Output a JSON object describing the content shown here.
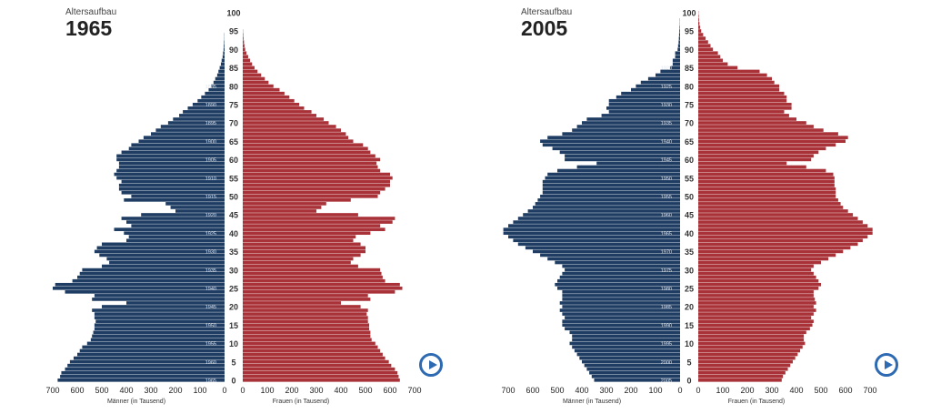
{
  "header": {
    "kicker": "Altersaufbau"
  },
  "axis": {
    "male_label": "Männer (in Tausend)",
    "female_label": "Frauen (in Tausend)",
    "x_ticks": [
      0,
      100,
      200,
      300,
      400,
      500,
      600,
      700
    ],
    "age_ticks": [
      0,
      5,
      10,
      15,
      20,
      25,
      30,
      35,
      40,
      45,
      50,
      55,
      60,
      65,
      70,
      75,
      80,
      85,
      90,
      95,
      100
    ]
  },
  "colors": {
    "male": "#1f3d63",
    "female": "#a83238",
    "play": "#2d6ab1"
  },
  "icons": {
    "play": "play-circle-icon"
  },
  "chart_data": [
    {
      "type": "bar",
      "title": "1965",
      "subtitle": "Altersaufbau",
      "xlabel_left": "Männer (in Tausend)",
      "xlabel_right": "Frauen (in Tausend)",
      "xlim": [
        0,
        700
      ],
      "age_range": [
        0,
        100
      ],
      "birth_year_labels": [
        {
          "age": 0,
          "label": "1965"
        },
        {
          "age": 5,
          "label": "1960"
        },
        {
          "age": 10,
          "label": "1955"
        },
        {
          "age": 15,
          "label": "1950"
        },
        {
          "age": 20,
          "label": "1945"
        },
        {
          "age": 25,
          "label": "1940"
        },
        {
          "age": 30,
          "label": "1935"
        },
        {
          "age": 35,
          "label": "1930"
        },
        {
          "age": 40,
          "label": "1925"
        },
        {
          "age": 45,
          "label": "1920"
        },
        {
          "age": 50,
          "label": "1915"
        },
        {
          "age": 55,
          "label": "1910"
        },
        {
          "age": 60,
          "label": "1905"
        },
        {
          "age": 65,
          "label": "1900"
        },
        {
          "age": 70,
          "label": "1895"
        },
        {
          "age": 75,
          "label": "1890"
        },
        {
          "age": 80,
          "label": "1885"
        }
      ],
      "series": [
        {
          "name": "Männer",
          "values": [
            680,
            670,
            665,
            650,
            640,
            630,
            615,
            600,
            590,
            580,
            560,
            545,
            540,
            535,
            530,
            530,
            525,
            530,
            530,
            540,
            500,
            400,
            540,
            530,
            650,
            700,
            690,
            620,
            600,
            590,
            580,
            500,
            470,
            480,
            510,
            530,
            520,
            500,
            400,
            390,
            410,
            450,
            380,
            400,
            420,
            340,
            200,
            220,
            240,
            410,
            380,
            420,
            430,
            430,
            420,
            440,
            450,
            440,
            430,
            430,
            440,
            440,
            420,
            390,
            380,
            350,
            330,
            300,
            280,
            260,
            230,
            210,
            185,
            170,
            150,
            130,
            110,
            95,
            80,
            65,
            55,
            45,
            38,
            30,
            25,
            20,
            15,
            12,
            8,
            6,
            4,
            3,
            2,
            1,
            1,
            0,
            0,
            0,
            0,
            0,
            0
          ]
        },
        {
          "name": "Frauen",
          "values": [
            640,
            635,
            630,
            620,
            605,
            595,
            580,
            570,
            560,
            550,
            540,
            525,
            520,
            520,
            515,
            515,
            510,
            510,
            505,
            510,
            480,
            400,
            520,
            510,
            620,
            650,
            640,
            580,
            570,
            565,
            560,
            470,
            440,
            450,
            480,
            500,
            500,
            480,
            450,
            460,
            520,
            580,
            560,
            610,
            620,
            470,
            300,
            320,
            340,
            440,
            550,
            560,
            580,
            600,
            600,
            610,
            600,
            560,
            550,
            545,
            560,
            540,
            520,
            510,
            490,
            450,
            430,
            420,
            400,
            380,
            350,
            330,
            300,
            280,
            250,
            230,
            210,
            190,
            170,
            150,
            125,
            105,
            90,
            75,
            60,
            48,
            38,
            30,
            22,
            15,
            10,
            7,
            5,
            3,
            2,
            1,
            0,
            0,
            0,
            0,
            0
          ]
        }
      ]
    },
    {
      "type": "bar",
      "title": "2005",
      "subtitle": "Altersaufbau",
      "xlabel_left": "Männer (in Tausend)",
      "xlabel_right": "Frauen (in Tausend)",
      "xlim": [
        0,
        700
      ],
      "age_range": [
        0,
        100
      ],
      "birth_year_labels": [
        {
          "age": 0,
          "label": "2005"
        },
        {
          "age": 5,
          "label": "2000"
        },
        {
          "age": 10,
          "label": "1995"
        },
        {
          "age": 15,
          "label": "1990"
        },
        {
          "age": 20,
          "label": "1985"
        },
        {
          "age": 25,
          "label": "1980"
        },
        {
          "age": 30,
          "label": "1975"
        },
        {
          "age": 35,
          "label": "1970"
        },
        {
          "age": 40,
          "label": "1965"
        },
        {
          "age": 45,
          "label": "1960"
        },
        {
          "age": 50,
          "label": "1955"
        },
        {
          "age": 55,
          "label": "1950"
        },
        {
          "age": 60,
          "label": "1945"
        },
        {
          "age": 65,
          "label": "1940"
        },
        {
          "age": 70,
          "label": "1935"
        },
        {
          "age": 75,
          "label": "1930"
        },
        {
          "age": 80,
          "label": "1925"
        },
        {
          "age": 85,
          "label": "1920"
        }
      ],
      "series": [
        {
          "name": "Männer",
          "values": [
            350,
            360,
            370,
            380,
            390,
            400,
            410,
            420,
            430,
            440,
            450,
            440,
            440,
            450,
            470,
            480,
            480,
            470,
            480,
            490,
            480,
            490,
            480,
            480,
            480,
            500,
            510,
            500,
            490,
            480,
            470,
            480,
            510,
            540,
            570,
            600,
            630,
            660,
            680,
            700,
            720,
            720,
            700,
            680,
            660,
            640,
            620,
            600,
            590,
            580,
            570,
            560,
            560,
            560,
            560,
            550,
            540,
            500,
            420,
            340,
            470,
            470,
            490,
            520,
            560,
            570,
            540,
            480,
            440,
            420,
            400,
            380,
            320,
            290,
            300,
            290,
            290,
            260,
            240,
            200,
            180,
            160,
            130,
            100,
            80,
            40,
            30,
            30,
            20,
            20,
            10,
            8,
            6,
            5,
            4,
            3,
            2,
            1,
            1,
            0,
            0
          ]
        },
        {
          "name": "Frauen",
          "values": [
            340,
            345,
            355,
            365,
            375,
            385,
            395,
            405,
            415,
            425,
            435,
            430,
            430,
            440,
            455,
            465,
            470,
            460,
            470,
            480,
            470,
            480,
            475,
            470,
            470,
            490,
            500,
            490,
            480,
            470,
            460,
            470,
            500,
            530,
            560,
            590,
            620,
            650,
            670,
            690,
            710,
            710,
            690,
            670,
            650,
            630,
            610,
            590,
            580,
            570,
            560,
            560,
            560,
            555,
            555,
            555,
            550,
            520,
            440,
            360,
            460,
            470,
            490,
            520,
            560,
            600,
            610,
            570,
            510,
            470,
            440,
            400,
            370,
            350,
            380,
            380,
            360,
            360,
            350,
            330,
            330,
            310,
            300,
            280,
            250,
            160,
            120,
            100,
            90,
            80,
            60,
            50,
            40,
            30,
            20,
            12,
            8,
            5,
            3,
            2,
            1
          ]
        }
      ]
    }
  ]
}
